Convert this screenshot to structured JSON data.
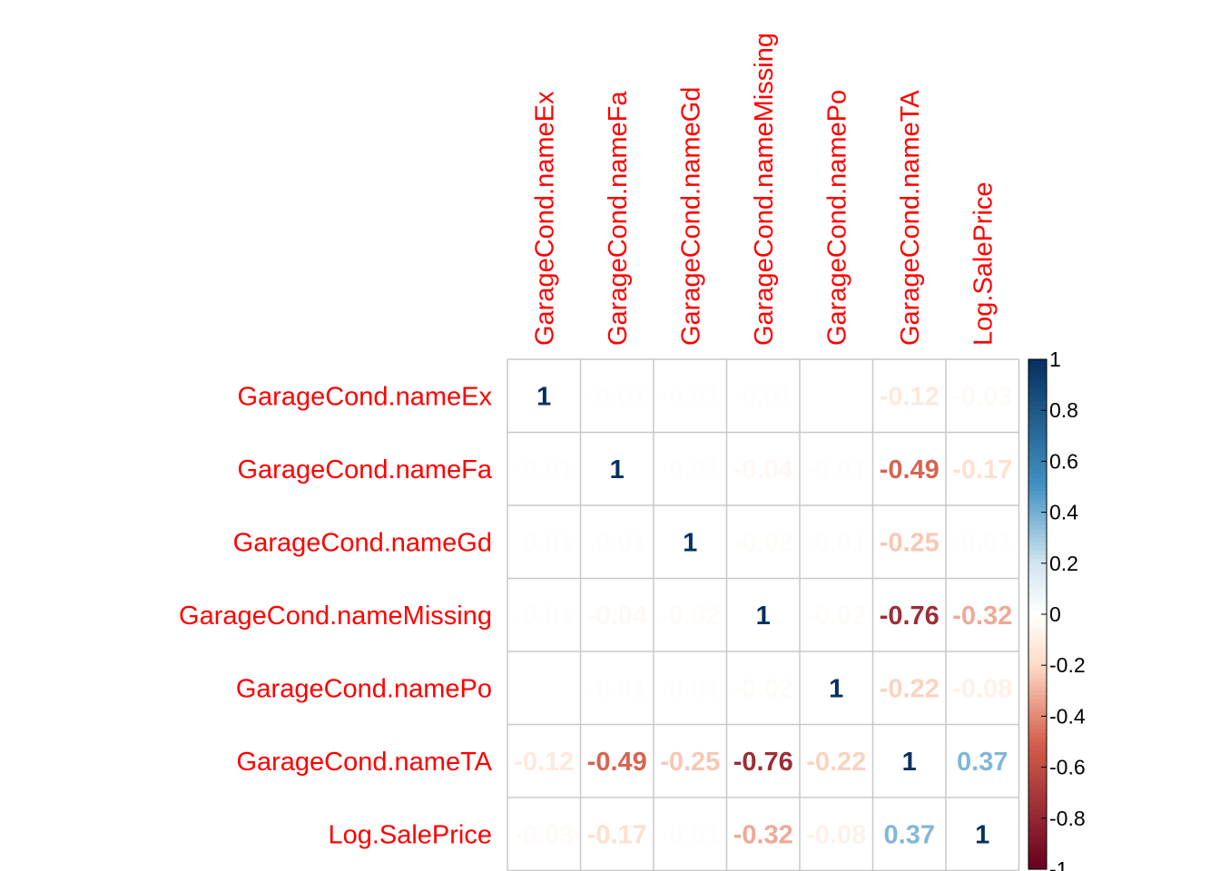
{
  "chart_data": {
    "type": "heatmap",
    "title": "",
    "variables": [
      "GarageCond.nameEx",
      "GarageCond.nameFa",
      "GarageCond.nameGd",
      "GarageCond.nameMissing",
      "GarageCond.namePo",
      "GarageCond.nameTA",
      "Log.SalePrice"
    ],
    "matrix": [
      [
        1,
        -0.01,
        -0.01,
        -0.01,
        0,
        -0.12,
        -0.03
      ],
      [
        -0.01,
        1,
        -0.01,
        -0.04,
        -0.01,
        -0.49,
        -0.17
      ],
      [
        -0.01,
        -0.01,
        1,
        -0.02,
        -0.01,
        -0.25,
        -0.01
      ],
      [
        -0.01,
        -0.04,
        -0.02,
        1,
        -0.02,
        -0.76,
        -0.32
      ],
      [
        0,
        -0.01,
        -0.01,
        -0.02,
        1,
        -0.22,
        -0.08
      ],
      [
        -0.12,
        -0.49,
        -0.25,
        -0.76,
        -0.22,
        1,
        0.37
      ],
      [
        -0.03,
        -0.17,
        -0.01,
        -0.32,
        -0.08,
        0.37,
        1
      ]
    ],
    "colorbar": {
      "min": -1,
      "max": 1,
      "ticks": [
        "1",
        "0.8",
        "0.6",
        "0.4",
        "0.2",
        "0",
        "-0.2",
        "-0.4",
        "-0.6",
        "-0.8",
        "-1"
      ]
    },
    "label_color": "#ff0000",
    "grid_color": "#c8c8c8",
    "colors": {
      "neg_dark": "#67001f",
      "neg_mid": "#d6604d",
      "neg_light": "#fddbc7",
      "white": "#ffffff",
      "pos_light": "#d1e5f0",
      "pos_mid": "#4393c3",
      "pos_dark": "#053061"
    }
  }
}
